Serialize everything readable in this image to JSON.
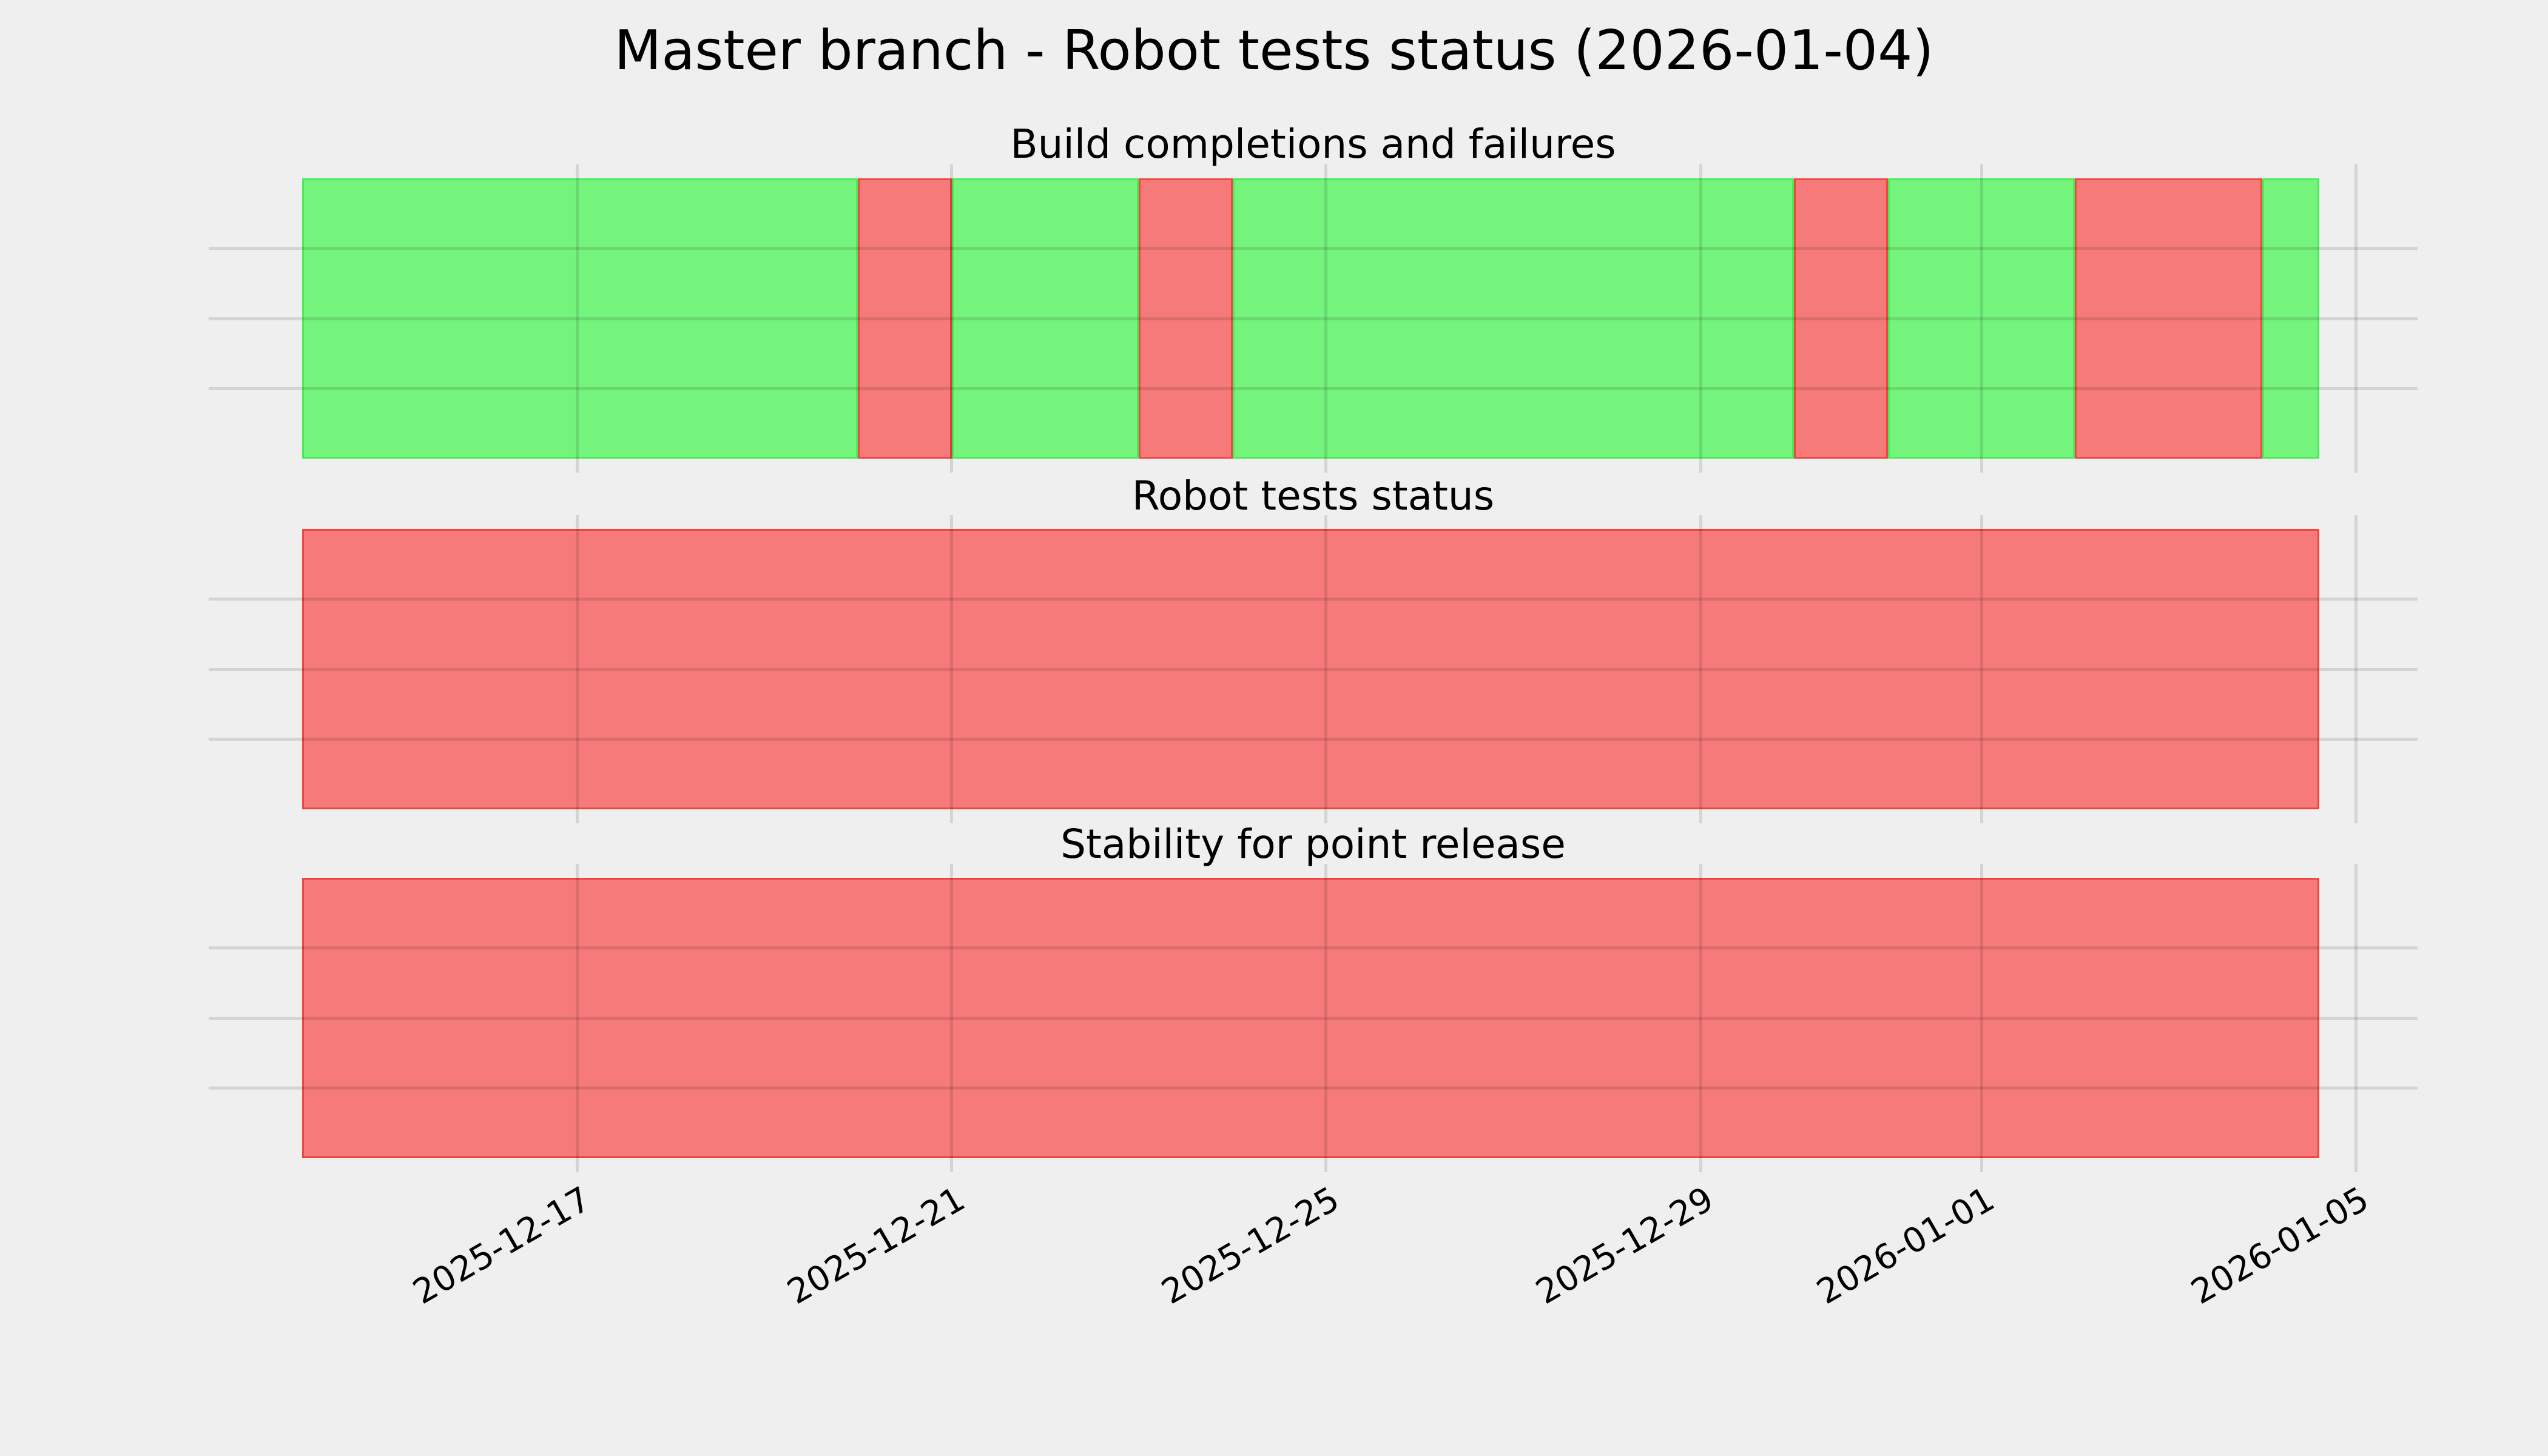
{
  "chart_data": {
    "type": "status-timeline",
    "title": "Master branch - Robot tests status (2026-01-04)",
    "series_start": "2025-12-14",
    "series_end": "2026-01-04",
    "total_days": 21.55,
    "legend": "none",
    "grid": "on",
    "x_axis": {
      "ticks": [
        {
          "label": "2025-12-17",
          "day": 2.94
        },
        {
          "label": "2025-12-21",
          "day": 6.94
        },
        {
          "label": "2025-12-25",
          "day": 10.94
        },
        {
          "label": "2025-12-29",
          "day": 14.94
        },
        {
          "label": "2026-01-01",
          "day": 17.94
        },
        {
          "label": "2026-01-05",
          "day": 21.94
        }
      ],
      "tick_rotation_deg": 30
    },
    "subplots": [
      {
        "title": "Build completions and failures",
        "segments": [
          {
            "status": "pass",
            "days": 5.94,
            "from": "2025-12-14",
            "to": "2025-12-20"
          },
          {
            "status": "fail",
            "days": 1.0,
            "from": "2025-12-20",
            "to": "2025-12-21"
          },
          {
            "status": "pass",
            "days": 2.0,
            "from": "2025-12-21",
            "to": "2025-12-23"
          },
          {
            "status": "fail",
            "days": 1.0,
            "from": "2025-12-23",
            "to": "2025-12-24"
          },
          {
            "status": "pass",
            "days": 6.0,
            "from": "2025-12-24",
            "to": "2025-12-30"
          },
          {
            "status": "fail",
            "days": 1.0,
            "from": "2025-12-30",
            "to": "2025-12-31"
          },
          {
            "status": "pass",
            "days": 2.0,
            "from": "2025-12-31",
            "to": "2026-01-02"
          },
          {
            "status": "fail",
            "days": 2.0,
            "from": "2026-01-02",
            "to": "2026-01-04"
          },
          {
            "status": "pass",
            "days": 0.61,
            "from": "2026-01-04",
            "to": "2026-01-04"
          }
        ]
      },
      {
        "title": "Robot tests status",
        "segments": [
          {
            "status": "fail",
            "days": 21.55,
            "from": "2025-12-14",
            "to": "2026-01-04"
          }
        ]
      },
      {
        "title": "Stability for point release",
        "segments": [
          {
            "status": "fail",
            "days": 21.55,
            "from": "2025-12-14",
            "to": "2026-01-04"
          }
        ]
      }
    ],
    "colors": {
      "pass": "#75f47d",
      "fail": "#f67a7a",
      "pass_edge": "#49ec57",
      "fail_edge": "#ee4640",
      "grid": "rgba(0,0,0,0.11)",
      "background": "#efefef",
      "text": "#000000"
    }
  }
}
